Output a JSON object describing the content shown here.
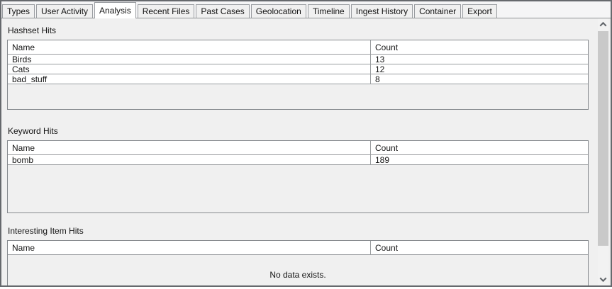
{
  "tab_bar": {
    "tabs": [
      {
        "label": "Types",
        "selected": false
      },
      {
        "label": "User Activity",
        "selected": false
      },
      {
        "label": "Analysis",
        "selected": true
      },
      {
        "label": "Recent Files",
        "selected": false
      },
      {
        "label": "Past Cases",
        "selected": false
      },
      {
        "label": "Geolocation",
        "selected": false
      },
      {
        "label": "Timeline",
        "selected": false
      },
      {
        "label": "Ingest History",
        "selected": false
      },
      {
        "label": "Container",
        "selected": false
      },
      {
        "label": "Export",
        "selected": false
      }
    ]
  },
  "sections": [
    {
      "title": "Hashset Hits",
      "columns": {
        "name": "Name",
        "count": "Count"
      },
      "rows": [
        {
          "name": "Birds",
          "count": "13"
        },
        {
          "name": "Cats",
          "count": "12"
        },
        {
          "name": "bad_stuff",
          "count": "8"
        }
      ],
      "empty_text": ""
    },
    {
      "title": "Keyword Hits",
      "columns": {
        "name": "Name",
        "count": "Count"
      },
      "rows": [
        {
          "name": "bomb",
          "count": "189"
        }
      ],
      "empty_text": ""
    },
    {
      "title": "Interesting Item Hits",
      "columns": {
        "name": "Name",
        "count": "Count"
      },
      "rows": [],
      "empty_text": "No data exists."
    }
  ],
  "scrollbar": {
    "up_icon": "chevron-up",
    "down_icon": "chevron-down"
  },
  "colors": {
    "panel_bg": "#f0f0f0",
    "row_bg": "#ffffff",
    "window_border": "#66696d",
    "panel_border": "#8f9294",
    "table_border": "#85898d",
    "grid_line": "#9a9da0",
    "scrollbar_thumb": "#c9c9c9",
    "scrollbar_arrow": "#5f6368",
    "selected_tab_bg": "#ffffff",
    "text": "#141414"
  }
}
